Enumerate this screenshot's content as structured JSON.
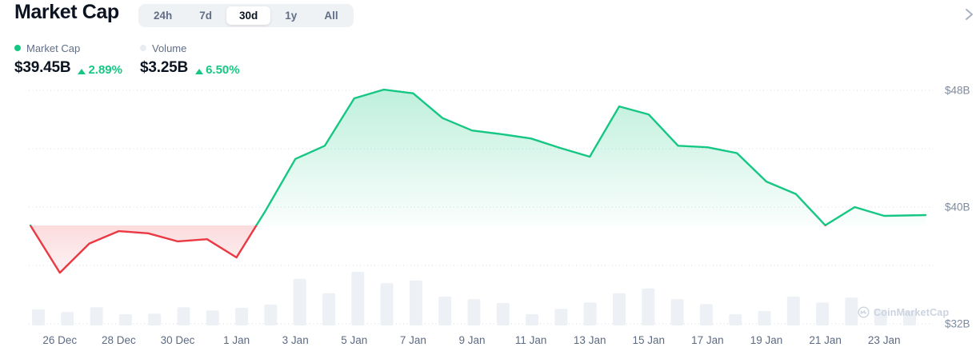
{
  "header": {
    "title": "Market Cap",
    "range_tabs": [
      "24h",
      "7d",
      "30d",
      "1y",
      "All"
    ],
    "active_tab": "30d",
    "stats": [
      {
        "label": "Market Cap",
        "dot_color": "#16c784",
        "value": "$39.45B",
        "change": "2.89%",
        "direction": "up"
      },
      {
        "label": "Volume",
        "dot_color": "#e9edf2",
        "value": "$3.25B",
        "change": "6.50%",
        "direction": "up"
      }
    ]
  },
  "watermark": {
    "text": "CoinMarketCap"
  },
  "colors": {
    "up_green": "#16c784",
    "down_red": "#ea3943",
    "volume_bar": "#edf1f6",
    "dark_text": "#0d1421",
    "muted_text": "#616e85",
    "axis_text": "#7d8a9f",
    "grid": "#cdd5e1"
  },
  "chart_data": {
    "type": "line",
    "title": "Market Cap",
    "subtitle": "30d range, daily points, green above start-of-range baseline and red below",
    "x": [
      "25 Dec",
      "26 Dec",
      "27 Dec",
      "28 Dec",
      "29 Dec",
      "30 Dec",
      "31 Dec",
      "1 Jan",
      "2 Jan",
      "3 Jan",
      "4 Jan",
      "5 Jan",
      "6 Jan",
      "7 Jan",
      "8 Jan",
      "9 Jan",
      "10 Jan",
      "11 Jan",
      "12 Jan",
      "13 Jan",
      "14 Jan",
      "15 Jan",
      "16 Jan",
      "17 Jan",
      "18 Jan",
      "19 Jan",
      "20 Jan",
      "21 Jan",
      "22 Jan",
      "23 Jan",
      "24 Jan"
    ],
    "series": [
      {
        "name": "Market Cap",
        "unit": "$B",
        "type": "line",
        "values": [
          38.74,
          35.5,
          37.5,
          38.35,
          38.2,
          37.65,
          37.8,
          36.55,
          39.8,
          43.3,
          44.2,
          47.45,
          48.05,
          47.8,
          46.1,
          45.25,
          45.0,
          44.7,
          44.05,
          43.45,
          46.9,
          46.35,
          44.2,
          44.1,
          43.7,
          41.75,
          40.9,
          38.75,
          40.0,
          39.4,
          39.45
        ]
      },
      {
        "name": "Volume",
        "unit": "relative height (no axis shown)",
        "type": "bar",
        "values": [
          0.3,
          0.25,
          0.34,
          0.21,
          0.22,
          0.34,
          0.28,
          0.33,
          0.39,
          0.87,
          0.6,
          1.0,
          0.79,
          0.84,
          0.54,
          0.49,
          0.42,
          0.21,
          0.31,
          0.43,
          0.6,
          0.69,
          0.49,
          0.4,
          0.21,
          0.27,
          0.54,
          0.43,
          0.52,
          0.3,
          0.27
        ]
      }
    ],
    "baseline_value": 38.74,
    "line_color_above_baseline": "#16c784",
    "line_color_below_baseline": "#ea3943",
    "ytick_labels": [
      "$48B",
      "$40B",
      "$32B"
    ],
    "ytick_values": [
      48,
      40,
      32
    ],
    "gridline_values": [
      48,
      44,
      40,
      36,
      32
    ],
    "xtick_labels": [
      "26 Dec",
      "28 Dec",
      "30 Dec",
      "1 Jan",
      "3 Jan",
      "5 Jan",
      "7 Jan",
      "9 Jan",
      "11 Jan",
      "13 Jan",
      "15 Jan",
      "17 Jan",
      "19 Jan",
      "21 Jan",
      "23 Jan"
    ],
    "ylim": [
      31.5,
      49
    ],
    "grid": "dotted horizontal, labels on right",
    "legend_position": "top-left",
    "legend": [
      "Market Cap",
      "Volume"
    ]
  }
}
